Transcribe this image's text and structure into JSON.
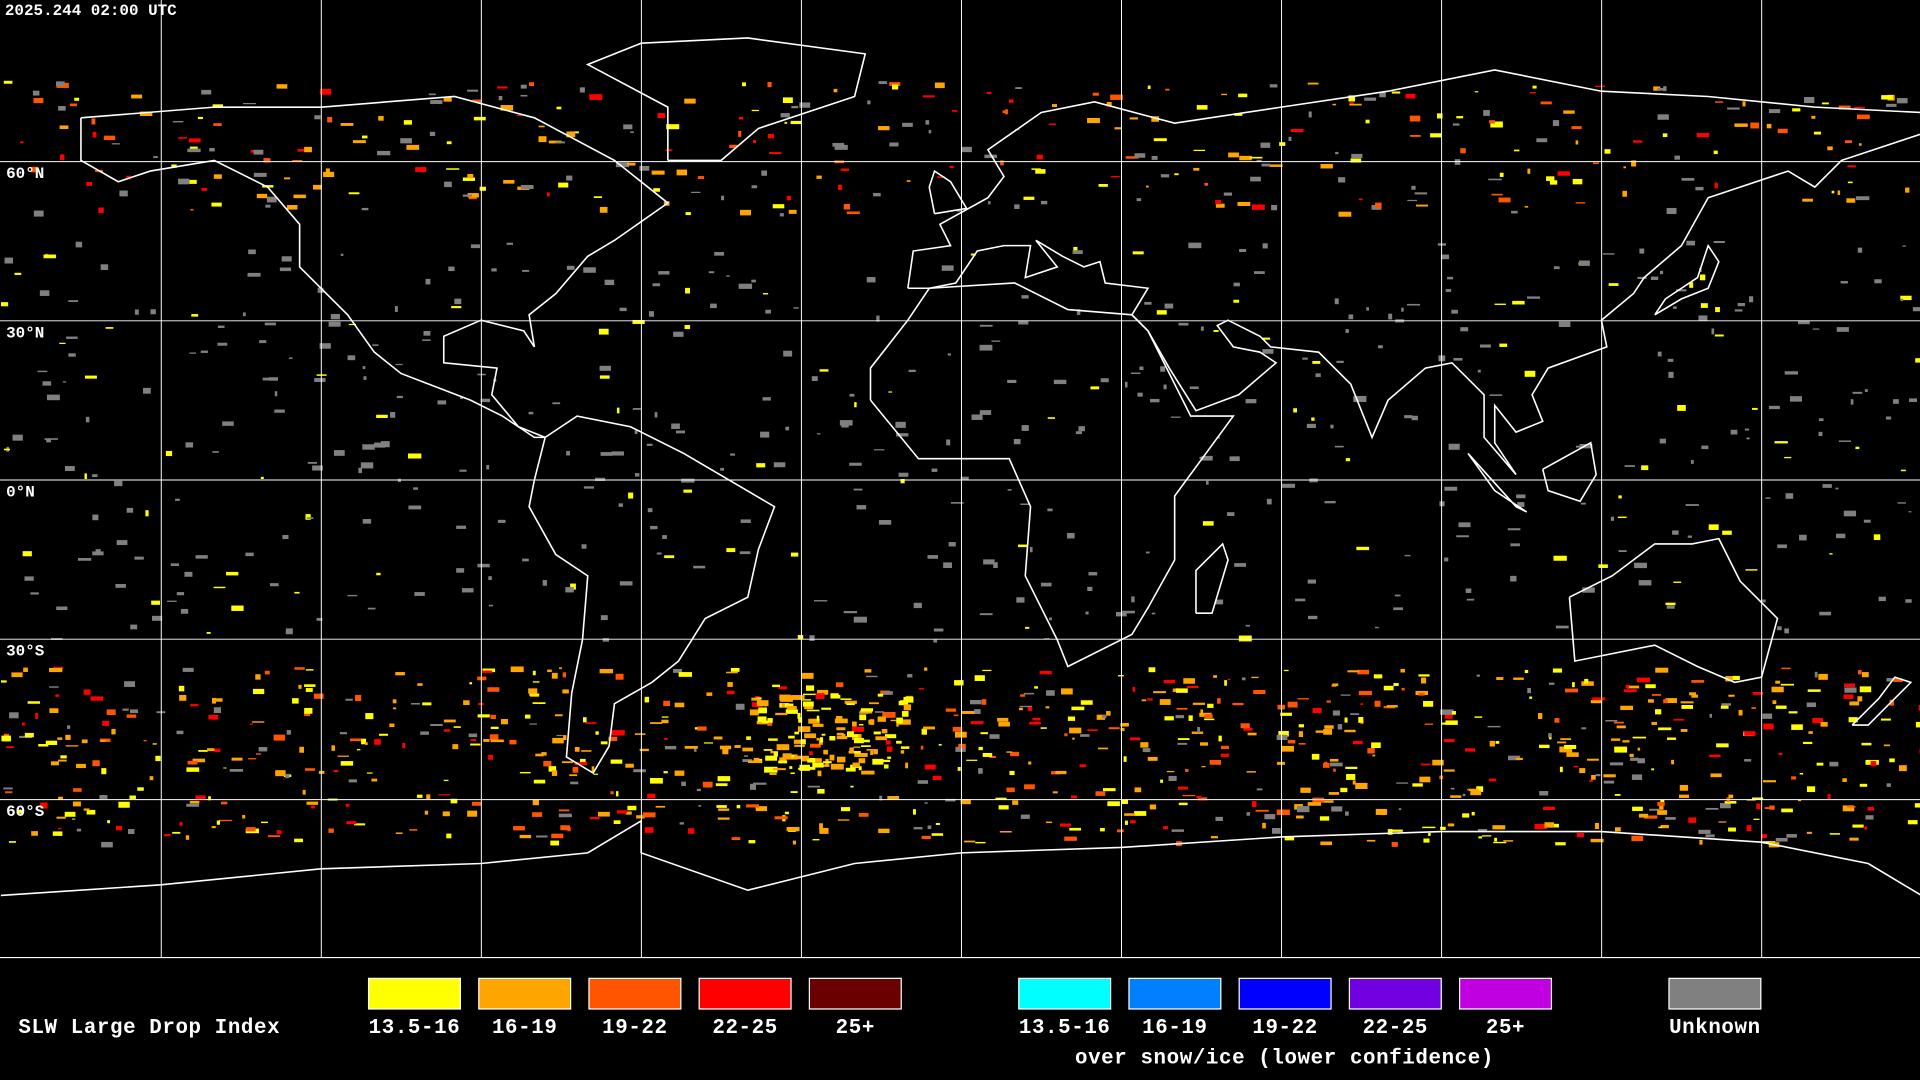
{
  "header": {
    "timestamp": "2025.244 02:00 UTC"
  },
  "map": {
    "latitude_labels": [
      "60°N",
      "30°N",
      "0°N",
      "30°S",
      "60°S"
    ]
  },
  "legend": {
    "title": "SLW Large Drop Index",
    "groups": [
      {
        "items": [
          {
            "label": "13.5-16",
            "color": "#ffff00"
          },
          {
            "label": "16-19",
            "color": "#ffa500"
          },
          {
            "label": "19-22",
            "color": "#ff5500"
          },
          {
            "label": "22-25",
            "color": "#ff0000"
          },
          {
            "label": "25+",
            "color": "#6b0000"
          }
        ]
      },
      {
        "items": [
          {
            "label": "13.5-16",
            "color": "#00ffff"
          },
          {
            "label": "16-19",
            "color": "#0080ff"
          },
          {
            "label": "19-22",
            "color": "#0000ff"
          },
          {
            "label": "22-25",
            "color": "#7000e0"
          },
          {
            "label": "25+",
            "color": "#c000e0"
          }
        ],
        "caption": "over snow/ice (lower confidence)"
      },
      {
        "items": [
          {
            "label": "Unknown",
            "color": "#808080"
          }
        ]
      }
    ]
  }
}
